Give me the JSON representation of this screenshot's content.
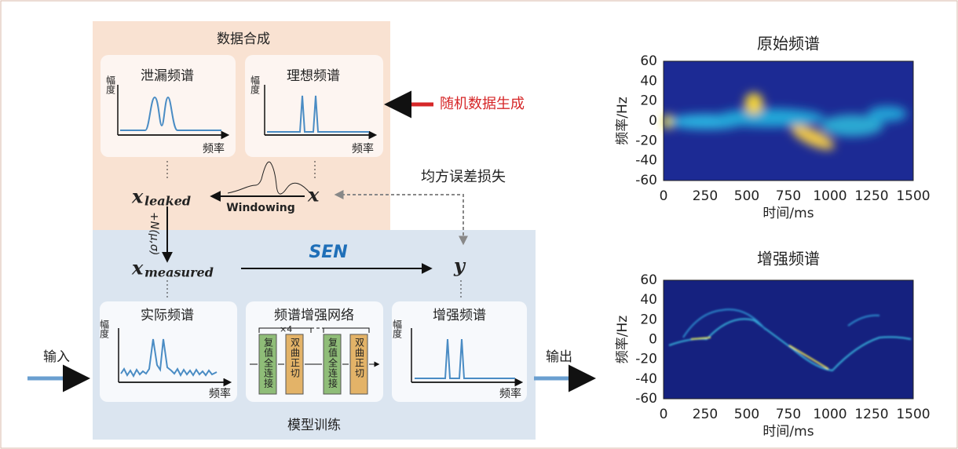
{
  "synthesis": {
    "title": "数据合成",
    "leaked": {
      "title": "泄漏频谱",
      "y_label": "幅度",
      "x_label": "频率"
    },
    "ideal": {
      "title": "理想频谱",
      "y_label": "幅度",
      "x_label": "频率"
    },
    "random": "随机数据生成"
  },
  "flow": {
    "x_leaked": "x",
    "leaked_sub": "leaked",
    "windowing": "Windowing",
    "x": "x",
    "noise": "+N(μ,σ)",
    "x_measured": "x",
    "measured_sub": "measured",
    "sen": "SEN",
    "y": "y",
    "mse": "均方误差损失"
  },
  "training": {
    "title": "模型训练",
    "input": "输入",
    "output": "输出",
    "actual": {
      "title": "实际频谱",
      "y_label": "幅度",
      "x_label": "频率"
    },
    "network": {
      "title": "频谱增强网络",
      "repeat": "×4",
      "blocks": [
        "复值全连接",
        "双曲正切",
        "复值全连接",
        "双曲正切"
      ]
    },
    "enhanced": {
      "title": "增强频谱",
      "y_label": "幅度",
      "x_label": "频率"
    }
  },
  "spectrograms": [
    {
      "title": "原始频谱",
      "y_label": "频率/Hz",
      "x_label": "时间/ms",
      "yticks": [
        60,
        40,
        20,
        0,
        -20,
        -40,
        -60
      ],
      "xticks": [
        0,
        250,
        500,
        750,
        1000,
        1250,
        1500
      ]
    },
    {
      "title": "增强频谱",
      "y_label": "频率/Hz",
      "x_label": "时间/ms",
      "yticks": [
        60,
        40,
        20,
        0,
        -20,
        -40,
        -60
      ],
      "xticks": [
        0,
        250,
        500,
        750,
        1000,
        1250,
        1500
      ]
    }
  ]
}
